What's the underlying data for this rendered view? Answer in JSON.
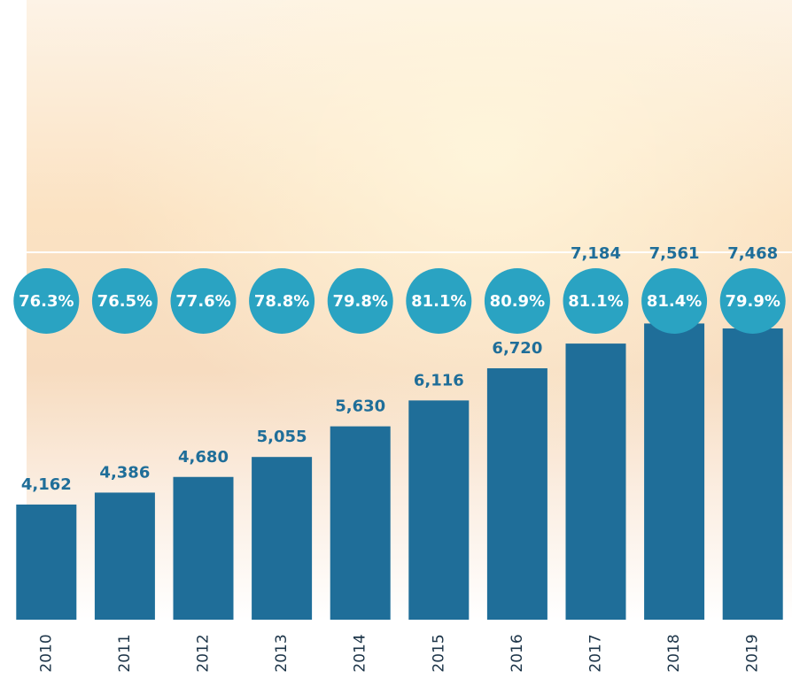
{
  "chart_data": {
    "type": "bar",
    "categories": [
      "2010",
      "2011",
      "2012",
      "2013",
      "2014",
      "2015",
      "2016",
      "2017",
      "2018",
      "2019"
    ],
    "series": [
      {
        "color": "#1f6e99",
        "values": [
          4162,
          4386,
          4680,
          5055,
          5630,
          6116,
          6720,
          7184,
          7561,
          7468
        ],
        "value_labels": [
          "4,162",
          "4,386",
          "4,680",
          "5,055",
          "5,630",
          "6,116",
          "6,720",
          "7,184",
          "7,561",
          "7,468"
        ]
      },
      {
        "color": "#2aa3c2",
        "values": [
          76.3,
          76.5,
          77.6,
          78.8,
          79.8,
          81.1,
          80.9,
          81.1,
          81.4,
          79.9
        ],
        "value_labels": [
          "76.3%",
          "76.5%",
          "77.6%",
          "78.8%",
          "79.8%",
          "81.1%",
          "80.9%",
          "81.1%",
          "81.4%",
          "79.9%"
        ]
      }
    ],
    "ylim": [
      2000,
      8000
    ]
  }
}
